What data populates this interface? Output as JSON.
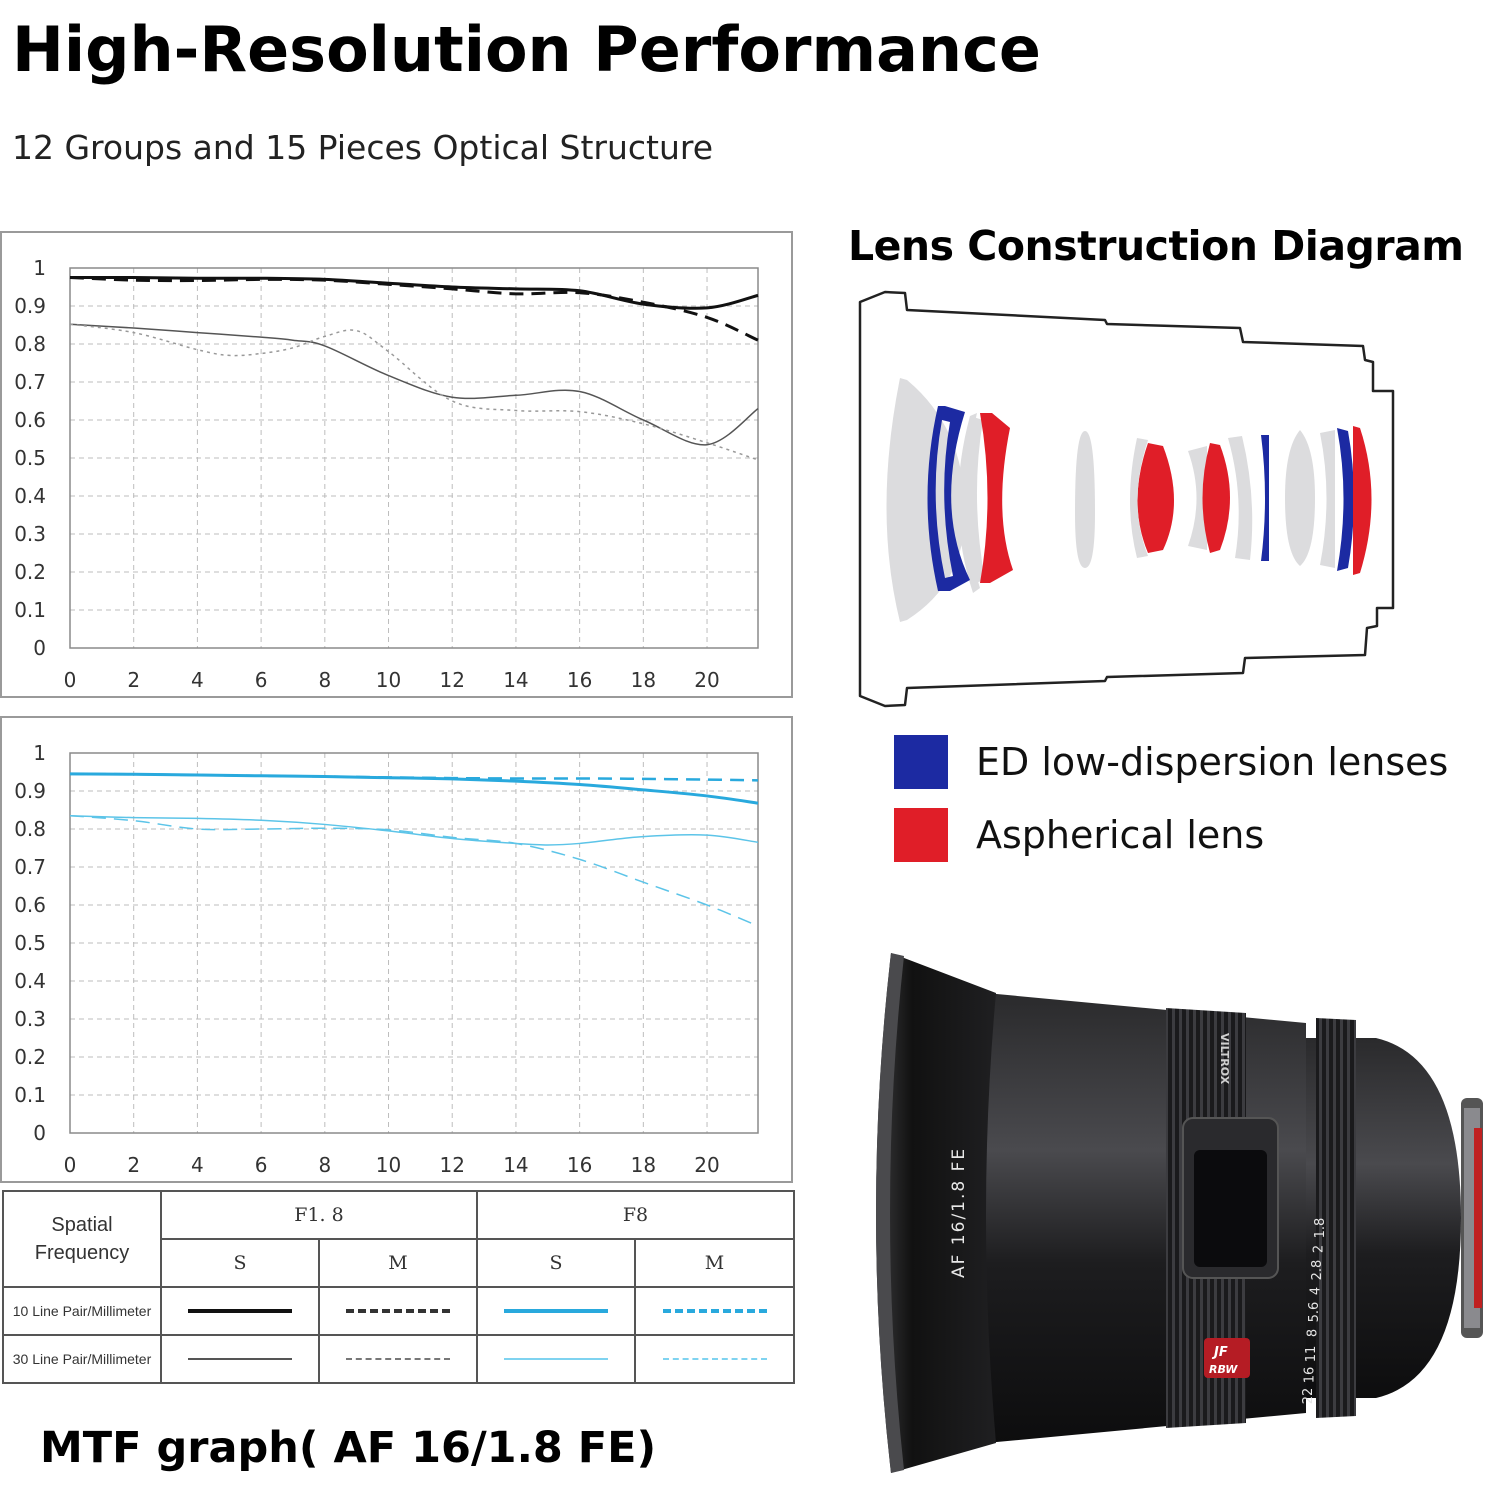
{
  "header": {
    "title": "High-Resolution Performance",
    "subtitle": "12 Groups and 15 Pieces Optical Structure"
  },
  "chart_data": [
    {
      "type": "line",
      "xlim": [
        0,
        21.6
      ],
      "ylim": [
        0,
        1
      ],
      "xticks": [
        "0",
        "2",
        "4",
        "6",
        "8",
        "10",
        "12",
        "14",
        "16",
        "18",
        "20"
      ],
      "yticks": [
        "1",
        "0.9",
        "0.8",
        "0.7",
        "0.6",
        "0.5",
        "0.4",
        "0.3",
        "0.2",
        "0.1",
        "0"
      ],
      "grid": true,
      "series": [
        {
          "name": "",
          "color": "#111111",
          "dash": "solid",
          "width": 3,
          "x": [
            0,
            2,
            4,
            6,
            8,
            10,
            12,
            14,
            16,
            18,
            20,
            21.6
          ],
          "y": [
            0.975,
            0.975,
            0.973,
            0.973,
            0.97,
            0.96,
            0.95,
            0.945,
            0.94,
            0.905,
            0.895,
            0.928
          ]
        },
        {
          "name": "",
          "color": "#111111",
          "dash": "dashed",
          "width": 3,
          "x": [
            0,
            2,
            4,
            6,
            8,
            10,
            12,
            14,
            16,
            18,
            20,
            21.6
          ],
          "y": [
            0.975,
            0.968,
            0.967,
            0.97,
            0.968,
            0.957,
            0.945,
            0.932,
            0.935,
            0.91,
            0.87,
            0.81
          ]
        },
        {
          "name": "",
          "color": "#555555",
          "dash": "solid",
          "width": 1.5,
          "x": [
            0,
            2,
            4,
            6,
            7,
            8,
            10,
            12,
            14,
            16,
            18,
            20,
            21.6
          ],
          "y": [
            0.852,
            0.842,
            0.83,
            0.818,
            0.81,
            0.795,
            0.717,
            0.66,
            0.665,
            0.675,
            0.6,
            0.535,
            0.63
          ]
        },
        {
          "name": "",
          "color": "#999999",
          "dash": "dotted",
          "width": 1.5,
          "x": [
            0,
            2,
            4,
            5,
            6,
            7,
            8,
            9,
            10,
            12,
            14,
            16,
            18,
            20,
            21.6
          ],
          "y": [
            0.852,
            0.83,
            0.785,
            0.77,
            0.775,
            0.79,
            0.82,
            0.835,
            0.78,
            0.65,
            0.625,
            0.622,
            0.59,
            0.54,
            0.495
          ]
        }
      ]
    },
    {
      "type": "line",
      "xlim": [
        0,
        21.6
      ],
      "ylim": [
        0,
        1
      ],
      "xticks": [
        "0",
        "2",
        "4",
        "6",
        "8",
        "10",
        "12",
        "14",
        "16",
        "18",
        "20"
      ],
      "yticks": [
        "1",
        "0.9",
        "0.8",
        "0.7",
        "0.6",
        "0.5",
        "0.4",
        "0.3",
        "0.2",
        "0.1",
        "0"
      ],
      "grid": true,
      "series": [
        {
          "name": "",
          "color": "#29a9dd",
          "dash": "solid",
          "width": 3,
          "x": [
            0,
            2,
            4,
            6,
            8,
            10,
            12,
            14,
            16,
            18,
            20,
            21.6
          ],
          "y": [
            0.945,
            0.944,
            0.942,
            0.94,
            0.938,
            0.935,
            0.932,
            0.926,
            0.917,
            0.903,
            0.887,
            0.868
          ]
        },
        {
          "name": "",
          "color": "#29a9dd",
          "dash": "dashed",
          "width": 2.5,
          "x": [
            0,
            2,
            4,
            6,
            8,
            10,
            12,
            14,
            16,
            18,
            20,
            21.6
          ],
          "y": [
            0.945,
            0.944,
            0.942,
            0.94,
            0.938,
            0.936,
            0.934,
            0.933,
            0.933,
            0.932,
            0.93,
            0.928
          ]
        },
        {
          "name": "",
          "color": "#5cc4e8",
          "dash": "solid",
          "width": 1.5,
          "x": [
            0,
            2,
            4,
            6,
            8,
            10,
            12,
            14,
            15,
            16,
            18,
            20,
            21.6
          ],
          "y": [
            0.835,
            0.83,
            0.828,
            0.823,
            0.812,
            0.795,
            0.775,
            0.762,
            0.758,
            0.762,
            0.78,
            0.784,
            0.765
          ]
        },
        {
          "name": "",
          "color": "#5cc4e8",
          "dash": "dashed",
          "width": 1.5,
          "x": [
            0,
            2,
            4,
            6,
            8,
            10,
            12,
            14,
            16,
            18,
            20,
            21.6
          ],
          "y": [
            0.835,
            0.822,
            0.8,
            0.8,
            0.802,
            0.798,
            0.778,
            0.762,
            0.72,
            0.66,
            0.6,
            0.545
          ]
        }
      ]
    }
  ],
  "legend_table": {
    "spatial_frequency": "Spatial\nFrequency",
    "apertures": [
      "F1. 8",
      "F8"
    ],
    "columns": [
      "S",
      "M",
      "S",
      "M"
    ],
    "rows": [
      {
        "label": "10 Line Pair/Millimeter",
        "styles": [
          {
            "color": "#111111",
            "dash": "solid",
            "width": 4
          },
          {
            "color": "#333333",
            "dash": "dashed",
            "width": 4
          },
          {
            "color": "#29a9dd",
            "dash": "solid",
            "width": 4
          },
          {
            "color": "#29a9dd",
            "dash": "dashed",
            "width": 4
          }
        ]
      },
      {
        "label": "30 Line Pair/Millimeter",
        "styles": [
          {
            "color": "#555555",
            "dash": "solid",
            "width": 2
          },
          {
            "color": "#777777",
            "dash": "dashed",
            "width": 2.5
          },
          {
            "color": "#7fd3f0",
            "dash": "solid",
            "width": 2
          },
          {
            "color": "#7fd3f0",
            "dash": "dashed",
            "width": 2
          }
        ]
      }
    ]
  },
  "diagram": {
    "title": "Lens Construction Diagram",
    "legend": [
      {
        "label": "ED low-dispersion lenses",
        "color": "#1c2aa2"
      },
      {
        "label": "Aspherical lens",
        "color": "#e01e28"
      }
    ],
    "element_color": "#dcdcde"
  },
  "caption": "MTF graph( AF 16/1.8 FE)",
  "lens_photo": {
    "brand": "VILTROX",
    "model": "AF 16/1.8 FE",
    "badge": [
      "JF",
      "RBW"
    ],
    "aperture_scale": [
      "1.8",
      "2",
      "2.8",
      "4",
      "5.6",
      "8",
      "11",
      "16",
      "22"
    ]
  }
}
